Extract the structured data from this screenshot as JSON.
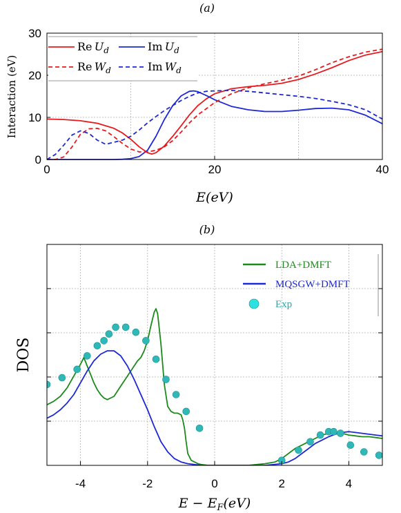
{
  "chart_data": [
    {
      "panel_label": "(a)",
      "type": "line",
      "xlabel": "E(eV)",
      "ylabel": "Interaction (eV)",
      "xlim": [
        0,
        40
      ],
      "ylim": [
        0,
        30
      ],
      "xticks": [
        "0",
        "20",
        "40"
      ],
      "yticks": [
        "0",
        "10",
        "20",
        "30"
      ],
      "grid": true,
      "legend": {
        "placement": "top-left",
        "entries": [
          {
            "re": "Re",
            "sym": "U",
            "sub": "d"
          },
          {
            "re": "Im",
            "sym": "U",
            "sub": "d"
          },
          {
            "re": "Re",
            "sym": "W",
            "sub": "d"
          },
          {
            "re": "Im",
            "sym": "W",
            "sub": "d"
          }
        ]
      },
      "series": [
        {
          "color": "#e8191c",
          "dash": "solid",
          "x": [
            0,
            2,
            4,
            6,
            8,
            9,
            10,
            11,
            12,
            12.5,
            13,
            14,
            15,
            16,
            17,
            18,
            19,
            20,
            22,
            24,
            26,
            28,
            30,
            32,
            34,
            36,
            38,
            40
          ],
          "y": [
            9.6,
            9.5,
            9.2,
            8.6,
            7.4,
            6.3,
            4.8,
            3.0,
            1.6,
            1.3,
            1.6,
            3.2,
            5.5,
            8.0,
            10.6,
            12.8,
            14.4,
            15.6,
            16.8,
            17.3,
            17.6,
            18.1,
            19.0,
            20.3,
            21.8,
            23.5,
            24.8,
            25.6
          ]
        },
        {
          "color": "#1c27d8",
          "dash": "solid",
          "x": [
            0,
            5,
            8,
            9,
            10,
            11,
            12,
            13,
            14,
            15,
            16,
            17,
            17.5,
            18,
            19,
            20,
            22,
            24,
            26,
            28,
            30,
            32,
            34,
            36,
            38,
            40
          ],
          "y": [
            0,
            0,
            0,
            0.05,
            0.2,
            0.7,
            2.2,
            5.5,
            9.5,
            12.8,
            15.1,
            16.2,
            16.3,
            16.1,
            15.2,
            14.2,
            12.6,
            11.8,
            11.4,
            11.4,
            11.7,
            12.1,
            12.2,
            11.8,
            10.5,
            8.5
          ]
        },
        {
          "color": "#e8191c",
          "dash": "dashed",
          "x": [
            0,
            1,
            2,
            3,
            4,
            5,
            6,
            7,
            8,
            9,
            10,
            11,
            12,
            13,
            14,
            15,
            16,
            17,
            18,
            20,
            22,
            24,
            26,
            28,
            30,
            32,
            34,
            36,
            38,
            40
          ],
          "y": [
            0,
            0,
            0.6,
            3.0,
            6.0,
            7.3,
            7.4,
            6.8,
            5.4,
            3.8,
            2.5,
            1.8,
            1.8,
            2.2,
            3.0,
            4.5,
            6.5,
            8.7,
            10.6,
            13.5,
            15.6,
            17.0,
            18.0,
            18.8,
            19.8,
            21.3,
            23.0,
            24.4,
            25.5,
            26.2
          ]
        },
        {
          "color": "#1c27d8",
          "dash": "dashed",
          "x": [
            0,
            1,
            2,
            3,
            4,
            5,
            6,
            7,
            8,
            9,
            10,
            11,
            12,
            13,
            14,
            15,
            16,
            17,
            18,
            19,
            20,
            22,
            24,
            26,
            28,
            30,
            32,
            34,
            36,
            38,
            40
          ],
          "y": [
            0,
            1.2,
            3.4,
            5.8,
            6.8,
            6.2,
            4.6,
            3.6,
            4.1,
            4.6,
            5.5,
            7.0,
            8.7,
            10.2,
            11.6,
            12.8,
            14.0,
            15.0,
            15.8,
            16.2,
            16.3,
            16.4,
            16.2,
            15.8,
            15.4,
            15.0,
            14.5,
            13.8,
            13.0,
            11.8,
            9.6
          ]
        }
      ]
    },
    {
      "panel_label": "(b)",
      "type": "line",
      "xlabel": "E − E",
      "xlabel_sub": "F",
      "xlabel_unit": "(eV)",
      "ylabel": "DOS",
      "xlim": [
        -5,
        5
      ],
      "ylim": [
        0,
        1
      ],
      "xticks": [
        "-4",
        "-2",
        "0",
        "2",
        "4"
      ],
      "grid": true,
      "legend": {
        "placement": "top-right",
        "entries": [
          "LDA+DMFT",
          "MQSGW+DMFT",
          "Exp"
        ]
      },
      "series": [
        {
          "color": "#1a8a1a",
          "kind": "line",
          "x": [
            -5,
            -4.8,
            -4.6,
            -4.4,
            -4.2,
            -4.0,
            -3.9,
            -3.8,
            -3.7,
            -3.6,
            -3.5,
            -3.4,
            -3.3,
            -3.2,
            -3.0,
            -2.8,
            -2.6,
            -2.4,
            -2.3,
            -2.2,
            -2.1,
            -2.0,
            -1.9,
            -1.8,
            -1.75,
            -1.7,
            -1.6,
            -1.5,
            -1.4,
            -1.3,
            -1.2,
            -1.1,
            -1.0,
            -0.95,
            -0.9,
            -0.85,
            -0.8,
            -0.7,
            -0.6,
            -0.5,
            -0.4,
            -0.2,
            0,
            0.5,
            1.0,
            1.5,
            1.8,
            2.0,
            2.2,
            2.4,
            2.6,
            2.8,
            3.0,
            3.2,
            3.4,
            3.6,
            3.8,
            4.0,
            4.2,
            4.4,
            4.6,
            4.8,
            5.0
          ],
          "y": [
            0.36,
            0.38,
            0.41,
            0.46,
            0.53,
            0.6,
            0.64,
            0.59,
            0.54,
            0.49,
            0.45,
            0.42,
            0.4,
            0.39,
            0.41,
            0.47,
            0.53,
            0.59,
            0.62,
            0.64,
            0.68,
            0.74,
            0.83,
            0.91,
            0.93,
            0.9,
            0.72,
            0.48,
            0.35,
            0.32,
            0.31,
            0.31,
            0.3,
            0.27,
            0.22,
            0.14,
            0.07,
            0.03,
            0.02,
            0.01,
            0.005,
            0,
            0,
            0,
            0,
            0.01,
            0.02,
            0.04,
            0.07,
            0.1,
            0.12,
            0.14,
            0.16,
            0.18,
            0.19,
            0.195,
            0.19,
            0.18,
            0.175,
            0.17,
            0.17,
            0.165,
            0.16
          ]
        },
        {
          "color": "#1c27d8",
          "kind": "line",
          "x": [
            -5,
            -4.8,
            -4.6,
            -4.4,
            -4.2,
            -4.0,
            -3.8,
            -3.6,
            -3.4,
            -3.2,
            -3.0,
            -2.8,
            -2.6,
            -2.4,
            -2.2,
            -2.0,
            -1.8,
            -1.6,
            -1.4,
            -1.2,
            -1.0,
            -0.8,
            -0.6,
            -0.4,
            -0.2,
            0,
            0.5,
            1.0,
            1.5,
            2.0,
            2.2,
            2.4,
            2.6,
            2.8,
            3.0,
            3.2,
            3.4,
            3.6,
            3.8,
            4.0,
            4.2,
            4.4,
            4.6,
            4.8,
            5.0
          ],
          "y": [
            0.28,
            0.3,
            0.33,
            0.37,
            0.42,
            0.49,
            0.56,
            0.62,
            0.66,
            0.68,
            0.68,
            0.65,
            0.59,
            0.51,
            0.42,
            0.33,
            0.23,
            0.14,
            0.08,
            0.04,
            0.02,
            0.01,
            0.005,
            0,
            0,
            0,
            0,
            0,
            0,
            0.01,
            0.02,
            0.04,
            0.07,
            0.1,
            0.13,
            0.15,
            0.17,
            0.185,
            0.195,
            0.2,
            0.195,
            0.19,
            0.185,
            0.18,
            0.175
          ]
        },
        {
          "color": "#2fb8b8",
          "kind": "points",
          "x": [
            -5.0,
            -4.55,
            -4.1,
            -3.8,
            -3.5,
            -3.3,
            -3.15,
            -2.95,
            -2.65,
            -2.35,
            -2.05,
            -1.75,
            -1.45,
            -1.15,
            -0.85,
            -0.45,
            2.0,
            2.5,
            2.85,
            3.15,
            3.4,
            3.55,
            3.75,
            4.05,
            4.45,
            4.9
          ],
          "y": [
            0.48,
            0.52,
            0.57,
            0.65,
            0.71,
            0.74,
            0.78,
            0.82,
            0.82,
            0.79,
            0.74,
            0.63,
            0.51,
            0.42,
            0.32,
            0.22,
            0.03,
            0.09,
            0.14,
            0.18,
            0.2,
            0.2,
            0.19,
            0.12,
            0.08,
            0.06
          ]
        }
      ]
    }
  ]
}
